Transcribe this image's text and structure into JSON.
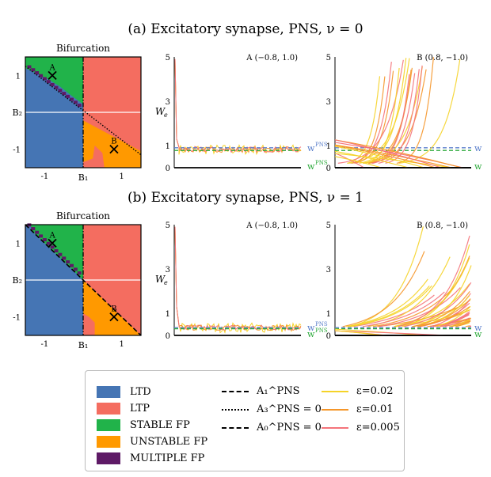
{
  "panels": [
    {
      "title": "(a) Excitatory synapse, PNS, ν = 0",
      "bifurcation": {
        "title": "Bifurcation",
        "tick_b1": "B₁",
        "tick_b2": "B₂",
        "xticks": [
          "-1",
          "1"
        ],
        "yticks": [
          "1",
          "-1"
        ],
        "markers": [
          {
            "label": "A",
            "x": -0.8,
            "y": 1.0
          },
          {
            "label": "B",
            "x": 0.8,
            "y": -1.0
          }
        ],
        "boundary_style": "dotted"
      },
      "traceA": {
        "title": "A (−0.8, 1.0)",
        "ylabel": "W_e",
        "yticks": [
          "5",
          "3",
          "1",
          "0"
        ]
      },
      "traceB": {
        "title": "B (0.8, −1.0)",
        "yticks": [
          "5",
          "3",
          "1",
          "0"
        ]
      },
      "refs": {
        "blue_label": "w^PNS_w≈0",
        "green_label": "w^PNS",
        "blue_value": 0.9,
        "green_value": 0.78
      }
    },
    {
      "title": "(b) Excitatory synapse, PNS, ν = 1",
      "bifurcation": {
        "title": "Bifurcation",
        "tick_b1": "B₁",
        "tick_b2": "B₂",
        "xticks": [
          "-1",
          "1"
        ],
        "yticks": [
          "1",
          "-1"
        ],
        "markers": [
          {
            "label": "A",
            "x": -0.8,
            "y": 1.0
          },
          {
            "label": "B",
            "x": 0.8,
            "y": -1.0
          }
        ],
        "boundary_style": "dashed"
      },
      "traceA": {
        "title": "A (−0.8, 1.0)",
        "ylabel": "W_e",
        "yticks": [
          "5",
          "3",
          "1",
          "0"
        ]
      },
      "traceB": {
        "title": "B (0.8, −1.0)",
        "yticks": [
          "5",
          "3",
          "1",
          "0"
        ]
      },
      "refs": {
        "blue_label": "w^PNS_w≈0",
        "green_label": "w^PNS",
        "blue_value": 0.35,
        "green_value": 0.3
      }
    }
  ],
  "colors": {
    "LTD": "#4575b4",
    "LTP": "#f46d60",
    "STABLE": "#21b34a",
    "UNSTABLE": "#ff9900",
    "MULTIPLE": "#5e1a66",
    "eps002": "#f5d328",
    "eps001": "#f5962a",
    "eps0005": "#f4737a",
    "ref_blue": "#5b7fcb",
    "ref_green": "#2daa3c"
  },
  "legend": {
    "regions": [
      "LTD",
      "LTP",
      "STABLE FP",
      "UNSTABLE FP",
      "MULTIPLE FP"
    ],
    "lines": [
      {
        "label": "A₁^PNS",
        "style": "dashdot"
      },
      {
        "label": "A₃^PNS = 0",
        "style": "dotted"
      },
      {
        "label": "A₀^PNS = 0",
        "style": "dashed"
      }
    ],
    "eps": [
      "ε=0.02",
      "ε=0.01",
      "ε=0.005"
    ]
  },
  "chart_data": [
    {
      "type": "heatmap",
      "title": "Bifurcation",
      "x_range": [
        -1.5,
        1.5
      ],
      "y_range": [
        -1.5,
        1.5
      ],
      "regions": {
        "top-left": "STABLE FP",
        "top-right": "LTP",
        "bottom-left": "LTD",
        "bottom-right": "UNSTABLE FP"
      },
      "points": [
        {
          "label": "A",
          "x": -0.8,
          "y": 1.0
        },
        {
          "label": "B",
          "x": 0.8,
          "y": -1.0
        }
      ]
    },
    {
      "type": "line",
      "title": "A (−0.8, 1.0)",
      "ylabel": "W_e",
      "ylim": [
        0,
        5
      ],
      "behavior": "decays quickly to ~0.9 plateau with noise",
      "plateau": 0.9
    },
    {
      "type": "line",
      "title": "B (0.8, −1.0)",
      "ylim": [
        0,
        5
      ],
      "behavior": "trajectories diverge upward or decay to 0 depending on ε",
      "series": [
        {
          "name": "ε=0.02"
        },
        {
          "name": "ε=0.01"
        },
        {
          "name": "ε=0.005"
        }
      ]
    }
  ]
}
